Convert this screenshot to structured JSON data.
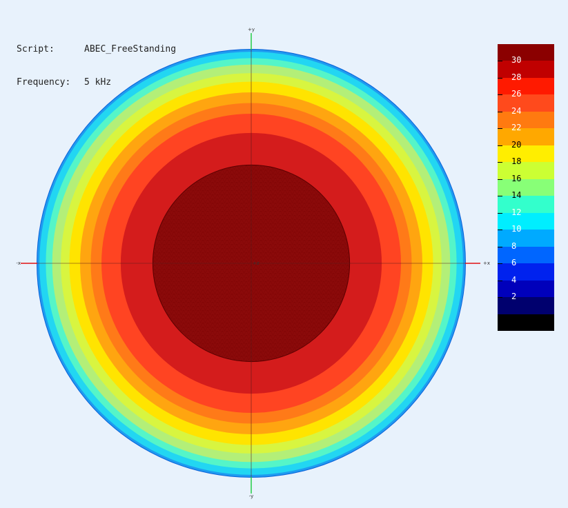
{
  "info": {
    "script_label": "Script:",
    "script_value": "ABEC_FreeStanding",
    "frequency_label": "Frequency:",
    "frequency_value": "5 kHz"
  },
  "axes": {
    "top": "+y",
    "bottom": "-y",
    "left": "-x",
    "right": "+x",
    "center": "+z"
  },
  "chart_data": {
    "type": "heatmap",
    "title": "",
    "xlabel": "",
    "ylabel": "",
    "shape": "circular contour map (rings)",
    "colorbar": {
      "ticks": [
        30,
        28,
        26,
        24,
        22,
        20,
        18,
        16,
        14,
        12,
        10,
        8,
        6,
        4,
        2
      ],
      "bands": [
        {
          "min": 30,
          "max": 32,
          "color": "#8b0000"
        },
        {
          "min": 28,
          "max": 30,
          "color": "#c00000"
        },
        {
          "min": 26,
          "max": 28,
          "color": "#ff1a00"
        },
        {
          "min": 24,
          "max": 26,
          "color": "#ff4a1c"
        },
        {
          "min": 22,
          "max": 24,
          "color": "#ff7a10"
        },
        {
          "min": 20,
          "max": 22,
          "color": "#ffa800"
        },
        {
          "min": 18,
          "max": 20,
          "color": "#ffee00"
        },
        {
          "min": 16,
          "max": 18,
          "color": "#ccff33"
        },
        {
          "min": 14,
          "max": 16,
          "color": "#88ff77"
        },
        {
          "min": 12,
          "max": 14,
          "color": "#33ffcc"
        },
        {
          "min": 10,
          "max": 12,
          "color": "#00eeff"
        },
        {
          "min": 8,
          "max": 10,
          "color": "#00aaff"
        },
        {
          "min": 6,
          "max": 8,
          "color": "#0066ff"
        },
        {
          "min": 4,
          "max": 6,
          "color": "#0022ee"
        },
        {
          "min": 2,
          "max": 4,
          "color": "#0000bb"
        },
        {
          "min": 0,
          "max": 2,
          "color": "#00006e"
        },
        {
          "min": -2,
          "max": 0,
          "color": "#000000"
        }
      ]
    },
    "rings": [
      {
        "level": 30,
        "color": "#8b0a0a",
        "r_fraction": 0.46
      },
      {
        "level": 28,
        "color": "#d41c1c",
        "r_fraction": 0.61
      },
      {
        "level": 26,
        "color": "#ff4422",
        "r_fraction": 0.7
      },
      {
        "level": 24,
        "color": "#ff7a18",
        "r_fraction": 0.75
      },
      {
        "level": 22,
        "color": "#ffa510",
        "r_fraction": 0.8
      },
      {
        "level": 20,
        "color": "#ffe400",
        "r_fraction": 0.85
      },
      {
        "level": 18,
        "color": "#d8f540",
        "r_fraction": 0.89
      },
      {
        "level": 16,
        "color": "#b3ef78",
        "r_fraction": 0.93
      },
      {
        "level": 14,
        "color": "#55f5c8",
        "r_fraction": 0.96
      },
      {
        "level": 12,
        "color": "#22d6f2",
        "r_fraction": 0.99
      },
      {
        "level": 10,
        "color": "#1e9bf0",
        "r_fraction": 1.0
      }
    ]
  }
}
